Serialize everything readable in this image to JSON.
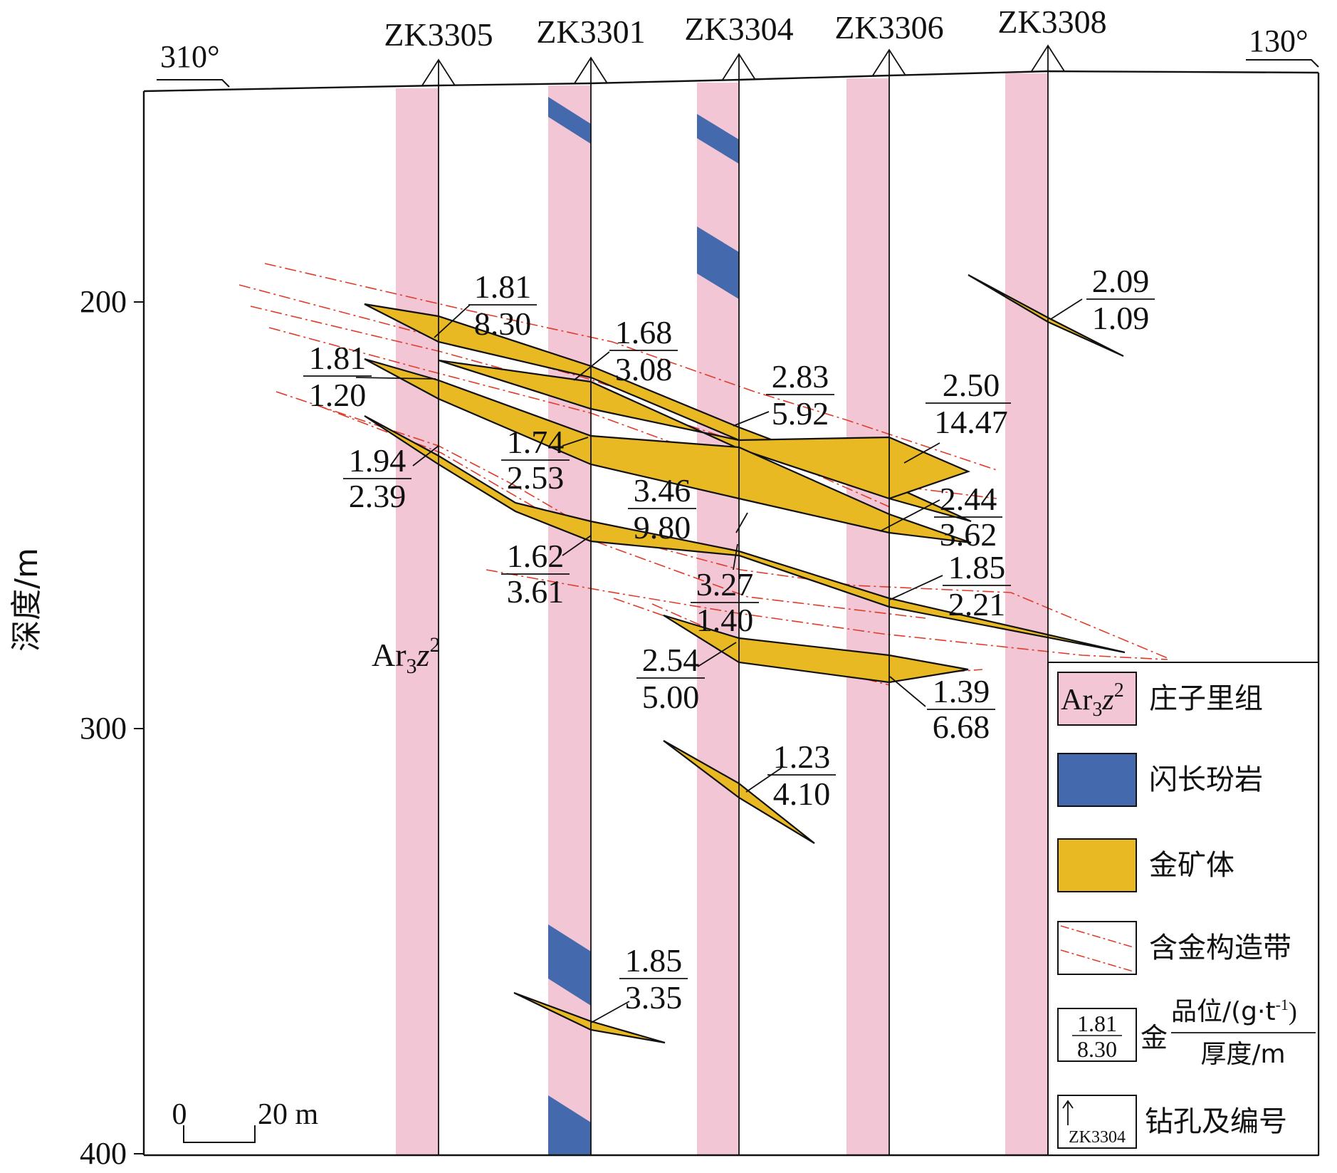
{
  "azimuth_left": "310°",
  "azimuth_right": "130°",
  "depth_axis": {
    "label": "深度/m",
    "ticks": [
      {
        "value": 200,
        "label": "200"
      },
      {
        "value": 300,
        "label": "300"
      },
      {
        "value": 400,
        "label": "400"
      }
    ]
  },
  "drillholes": [
    {
      "id": "ZK3305"
    },
    {
      "id": "ZK3301"
    },
    {
      "id": "ZK3304"
    },
    {
      "id": "ZK3306"
    },
    {
      "id": "ZK3308"
    }
  ],
  "formation_label": {
    "base": "Ar",
    "sub": "3",
    "italic": "z",
    "sup": "2"
  },
  "ore_annotations": [
    {
      "grade": "1.81",
      "thickness": "8.30"
    },
    {
      "grade": "1.81",
      "thickness": "1.20"
    },
    {
      "grade": "1.68",
      "thickness": "3.08"
    },
    {
      "grade": "2.83",
      "thickness": "5.92"
    },
    {
      "grade": "2.50",
      "thickness": "14.47"
    },
    {
      "grade": "2.09",
      "thickness": "1.09"
    },
    {
      "grade": "1.94",
      "thickness": "2.39"
    },
    {
      "grade": "1.74",
      "thickness": "2.53"
    },
    {
      "grade": "3.46",
      "thickness": "9.80"
    },
    {
      "grade": "2.44",
      "thickness": "3.62"
    },
    {
      "grade": "1.62",
      "thickness": "3.61"
    },
    {
      "grade": "3.27",
      "thickness": "1.40"
    },
    {
      "grade": "1.85",
      "thickness": "2.21"
    },
    {
      "grade": "2.54",
      "thickness": "5.00"
    },
    {
      "grade": "1.39",
      "thickness": "6.68"
    },
    {
      "grade": "1.23",
      "thickness": "4.10"
    },
    {
      "grade": "1.85",
      "thickness": "3.35"
    }
  ],
  "scale_bar": {
    "zero": "0",
    "end": "20 m"
  },
  "legend": {
    "formation": {
      "symbol_base": "Ar",
      "symbol_sub": "3",
      "symbol_italic": "z",
      "symbol_sup": "2",
      "label": "庄子里组"
    },
    "diorite": {
      "label": "闪长玢岩"
    },
    "gold": {
      "label": "金矿体"
    },
    "zone": {
      "label": "含金构造带"
    },
    "grade": {
      "sample_grade": "1.81",
      "sample_thickness": "8.30",
      "prefix": "金",
      "numerator": "品位/(g·t",
      "numerator_sup": "-1",
      "numerator_close": ")",
      "denominator": "厚度/m"
    },
    "hole": {
      "sample": "ZK3304",
      "label": "钻孔及编号"
    }
  },
  "colors": {
    "formation_pink": "#F2C6D4",
    "diorite_blue": "#4569AD",
    "gold_yellow": "#E8B923",
    "fault_red": "#E03C2A",
    "line": "#111111"
  }
}
